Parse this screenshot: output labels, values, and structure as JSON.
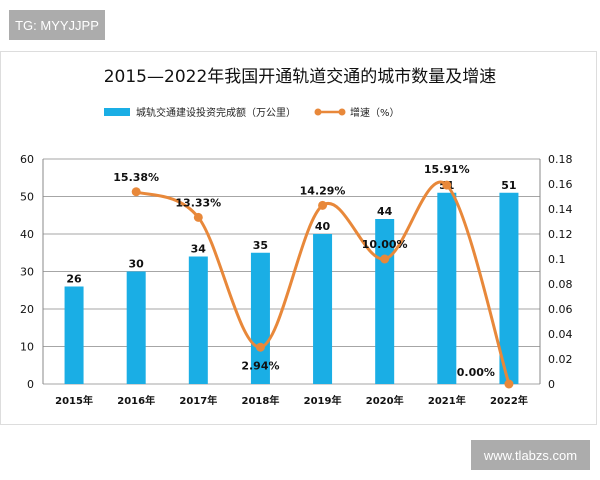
{
  "watermarks": {
    "top_left": "TG: MYYJJPP",
    "bottom_right": "www.tlabzs.com"
  },
  "chart_data": {
    "type": "bar+line",
    "title": "2015—2022年我国开通轨道交通的城市数量及增速",
    "categories": [
      "2015年",
      "2016年",
      "2017年",
      "2018年",
      "2019年",
      "2020年",
      "2021年",
      "2022年"
    ],
    "series": [
      {
        "name": "城轨交通建设投资完成额（万公里）",
        "type": "bar",
        "axis": "left",
        "color": "#1aaee5",
        "values": [
          26,
          30,
          34,
          35,
          40,
          44,
          51,
          51
        ],
        "labels": [
          "26",
          "30",
          "34",
          "35",
          "40",
          "44",
          "51",
          "51"
        ]
      },
      {
        "name": "增速（%）",
        "type": "line",
        "axis": "right",
        "color": "#e8883a",
        "smooth": true,
        "values": [
          null,
          0.1538,
          0.1333,
          0.0294,
          0.1429,
          0.1,
          0.1591,
          0
        ],
        "labels": [
          "",
          "15.38%",
          "13.33%",
          "2.94%",
          "14.29%",
          "10.00%",
          "15.91%",
          "0.00%"
        ]
      }
    ],
    "left_axis": {
      "ylim": [
        0,
        60
      ],
      "ticks": [
        "0",
        "10",
        "20",
        "30",
        "40",
        "50",
        "60"
      ]
    },
    "right_axis": {
      "ylim": [
        0,
        0.18
      ],
      "ticks": [
        "0",
        "0.02",
        "0.04",
        "0.06",
        "0.08",
        "0.1",
        "0.12",
        "0.14",
        "0.16",
        "0.18"
      ]
    },
    "grid": true,
    "legend": "top"
  }
}
